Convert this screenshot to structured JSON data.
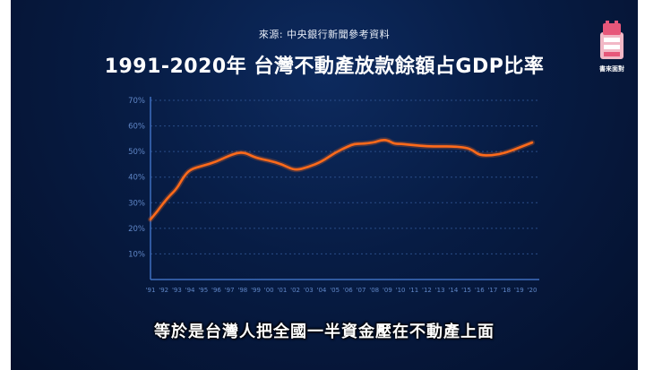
{
  "header": {
    "source": "來源: 中央銀行新聞參考資料",
    "title": "1991-2020年 台灣不動產放款餘額占GDP比率"
  },
  "logo": {
    "caption": "書來面對"
  },
  "subtitle": "等於是台灣人把全國一半資金壓在不動產上面",
  "colors": {
    "line": "#ff6a1a",
    "axis": "#3f6fc0",
    "grid": "#2a4d88",
    "background": "#071c44"
  },
  "chart_data": {
    "type": "line",
    "title": "1991-2020年 台灣不動產放款餘額占GDP比率",
    "xlabel": "",
    "ylabel": "",
    "ylim": [
      0,
      70
    ],
    "y_ticks": [
      "10%",
      "20%",
      "30%",
      "40%",
      "50%",
      "60%",
      "70%"
    ],
    "y_tick_values": [
      10,
      20,
      30,
      40,
      50,
      60,
      70
    ],
    "categories": [
      "'91",
      "'92",
      "'93",
      "'94",
      "'95",
      "'96",
      "'97",
      "'98",
      "'99",
      "'00",
      "'01",
      "'02",
      "'03",
      "'04",
      "'05",
      "'06",
      "'07",
      "'08",
      "'09",
      "'10",
      "'11",
      "'12",
      "'13",
      "'14",
      "'15",
      "'16",
      "'17",
      "'18",
      "'19",
      "'20"
    ],
    "grid": "horizontal-dashed",
    "legend": "none",
    "series": [
      {
        "points": [
          [
            1991.0,
            23.5
          ],
          [
            1991.5,
            26.5
          ],
          [
            1992.0,
            30.0
          ],
          [
            1992.5,
            33.0
          ],
          [
            1993.0,
            35.5
          ],
          [
            1993.5,
            40.0
          ],
          [
            1994.0,
            43.0
          ],
          [
            1995.0,
            44.5
          ],
          [
            1996.0,
            46.0
          ],
          [
            1997.0,
            48.5
          ],
          [
            1998.0,
            50.0
          ],
          [
            1999.0,
            47.5
          ],
          [
            2000.0,
            46.5
          ],
          [
            2001.0,
            45.0
          ],
          [
            2002.0,
            42.5
          ],
          [
            2003.0,
            44.0
          ],
          [
            2004.0,
            46.0
          ],
          [
            2005.0,
            49.5
          ],
          [
            2006.0,
            52.0
          ],
          [
            2006.5,
            53.0
          ],
          [
            2007.0,
            53.0
          ],
          [
            2008.0,
            53.5
          ],
          [
            2008.5,
            54.5
          ],
          [
            2009.0,
            54.5
          ],
          [
            2009.5,
            53.0
          ],
          [
            2010.0,
            53.0
          ],
          [
            2011.0,
            52.5
          ],
          [
            2012.0,
            52.0
          ],
          [
            2013.0,
            52.0
          ],
          [
            2014.0,
            52.0
          ],
          [
            2015.0,
            51.5
          ],
          [
            2015.5,
            50.5
          ],
          [
            2016.0,
            48.5
          ],
          [
            2017.0,
            48.5
          ],
          [
            2018.0,
            49.5
          ],
          [
            2019.0,
            51.5
          ],
          [
            2020.0,
            53.5
          ]
        ]
      }
    ]
  }
}
